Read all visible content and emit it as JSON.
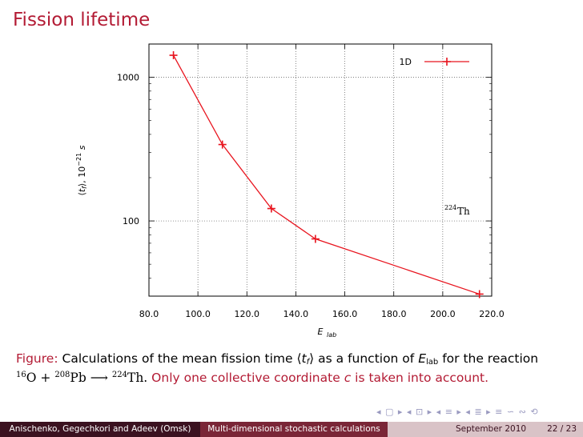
{
  "slide": {
    "title": "Fission lifetime"
  },
  "chart_data": {
    "type": "line",
    "xlabel": "E_lab",
    "ylabel": "⟨t_f⟩, 10^-21 s",
    "xlim": [
      80,
      220
    ],
    "ylim": [
      30,
      1700
    ],
    "y_scale": "log",
    "x_ticks": [
      "80.0",
      "100.0",
      "120.0",
      "140.0",
      "160.0",
      "180.0",
      "200.0",
      "220.0"
    ],
    "y_ticks": [
      "1000",
      "100"
    ],
    "y_tick_values": [
      1000,
      100
    ],
    "grid": true,
    "legend_position": "top-right",
    "series": [
      {
        "name": "1D",
        "color": "#e8141e",
        "marker": "plus",
        "x": [
          90,
          110,
          130,
          148,
          215
        ],
        "y": [
          1420,
          340,
          122,
          75,
          31
        ]
      }
    ],
    "annotation": {
      "nucleus_mass": "224",
      "nucleus_symbol": "Th"
    }
  },
  "caption": {
    "label": "Figure:",
    "text1": "Calculations of the mean fission time",
    "tf_sym": "t",
    "tf_sub": "f",
    "text2": "as a function of",
    "elab_sym": "E",
    "elab_sub": "lab",
    "text3": "for the reaction",
    "p1_mass": "16",
    "p1_sym": "O",
    "plus": "+",
    "p2_mass": "208",
    "p2_sym": "Pb",
    "arrow": "⟶",
    "p3_mass": "224",
    "p3_sym": "Th.",
    "text4": "Only one collective coordinate",
    "coord": "c",
    "text5": "is taken into account."
  },
  "nav": {
    "symbols": "◂ ▢ ▸ ◂ ⊡ ▸ ◂ ≡ ▸ ◂ ≣ ▸ ≡ ∽ ∾ ⟲"
  },
  "footer": {
    "authors": "Anischenko, Gegechkori and Adeev (Omsk)",
    "talk": "Multi-dimensional stochastic calculations",
    "date": "September 2010",
    "page": "22 / 23"
  }
}
